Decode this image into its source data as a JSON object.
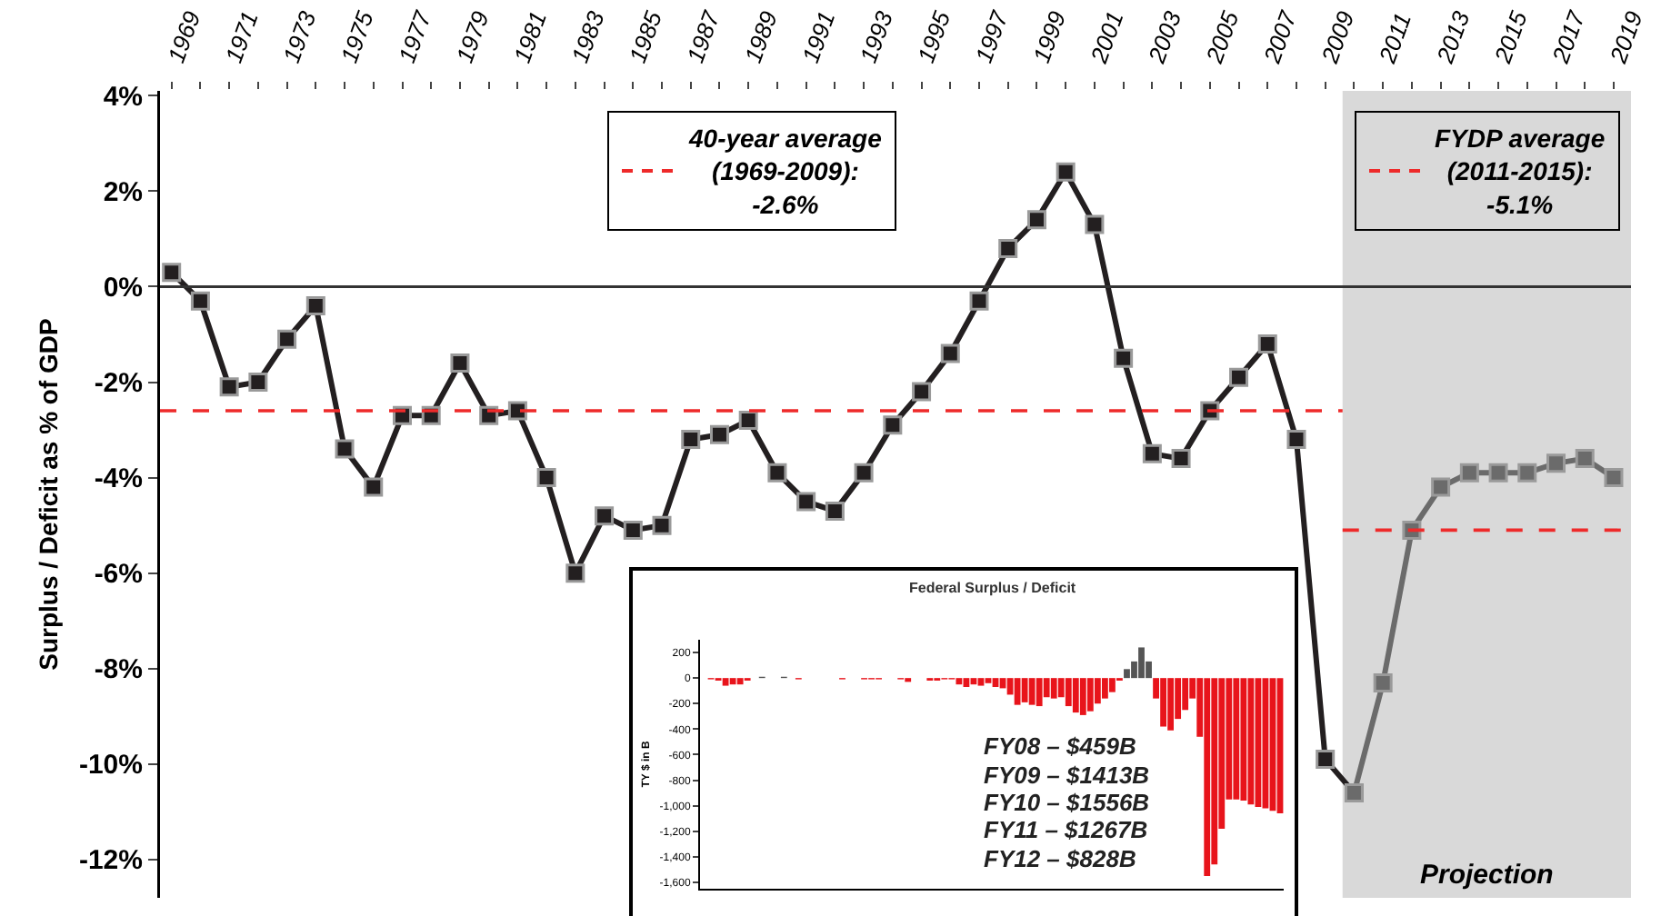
{
  "chart_data": [
    {
      "type": "line",
      "ylabel": "Surplus / Deficit as % of GDP",
      "marker": "square",
      "line_style": "solid",
      "grid": false,
      "legend": "top",
      "xlim": [
        1968.6,
        2019.6
      ],
      "ylim": [
        -12.8,
        4.1
      ],
      "xticks": [
        1969,
        {
          "value": 1970,
          "label": null
        },
        1971,
        {
          "value": 1972,
          "label": null
        },
        1973,
        {
          "value": 1974,
          "label": null
        },
        1975,
        {
          "value": 1976,
          "label": null
        },
        1977,
        {
          "value": 1978,
          "label": null
        },
        1979,
        {
          "value": 1980,
          "label": null
        },
        1981,
        {
          "value": 1982,
          "label": null
        },
        1983,
        {
          "value": 1984,
          "label": null
        },
        1985,
        {
          "value": 1986,
          "label": null
        },
        1987,
        {
          "value": 1988,
          "label": null
        },
        1989,
        {
          "value": 1990,
          "label": null
        },
        1991,
        {
          "value": 1992,
          "label": null
        },
        1993,
        {
          "value": 1994,
          "label": null
        },
        1995,
        {
          "value": 1996,
          "label": null
        },
        1997,
        {
          "value": 1998,
          "label": null
        },
        1999,
        {
          "value": 2000,
          "label": null
        },
        2001,
        {
          "value": 2002,
          "label": null
        },
        2003,
        {
          "value": 2004,
          "label": null
        },
        2005,
        {
          "value": 2006,
          "label": null
        },
        2007,
        {
          "value": 2008,
          "label": null
        },
        2009,
        {
          "value": 2010,
          "label": null
        },
        2011,
        {
          "value": 2012,
          "label": null
        },
        2013,
        {
          "value": 2014,
          "label": null
        },
        2015,
        {
          "value": 2016,
          "label": null
        },
        2017,
        {
          "value": 2018,
          "label": null
        },
        2019
      ],
      "yticks": [
        {
          "value": 4,
          "label": "4%"
        },
        {
          "value": 2,
          "label": "2%"
        },
        {
          "value": 0,
          "label": "0%"
        },
        {
          "value": -2,
          "label": "-2%"
        },
        {
          "value": -4,
          "label": "-4%"
        },
        {
          "value": -6,
          "label": "-6%"
        },
        {
          "value": -8,
          "label": "-8%"
        },
        {
          "value": -10,
          "label": "-10%"
        },
        {
          "value": -12,
          "label": "-12%"
        }
      ],
      "series": [
        {
          "color": "#231f20",
          "x": [
            1969,
            1970,
            1971,
            1972,
            1973,
            1974,
            1975,
            1976,
            1977,
            1978,
            1979,
            1980,
            1981,
            1982,
            1983,
            1984,
            1985,
            1986,
            1987,
            1988,
            1989,
            1990,
            1991,
            1992,
            1993,
            1994,
            1995,
            1996,
            1997,
            1998,
            1999,
            2000,
            2001,
            2002,
            2003,
            2004,
            2005,
            2006,
            2007,
            2008,
            2009,
            2010
          ],
          "values": [
            0.3,
            -0.3,
            -2.1,
            -2.0,
            -1.1,
            -0.4,
            -3.4,
            -4.2,
            -2.7,
            -2.7,
            -1.6,
            -2.7,
            -2.6,
            -4.0,
            -6.0,
            -4.8,
            -5.1,
            -5.0,
            -3.2,
            -3.1,
            -2.8,
            -3.9,
            -4.5,
            -4.7,
            -3.9,
            -2.9,
            -2.2,
            -1.4,
            -0.3,
            0.8,
            1.4,
            2.4,
            1.3,
            -1.5,
            -3.5,
            -3.6,
            -2.6,
            -1.9,
            -1.2,
            -3.2,
            -9.9,
            -10.6
          ]
        },
        {
          "color": "#6b6b6b",
          "x": [
            2010,
            2011,
            2012,
            2013,
            2014,
            2015,
            2016,
            2017,
            2018,
            2019
          ],
          "values": [
            -10.6,
            -8.3,
            -5.1,
            -4.2,
            -3.9,
            -3.9,
            -3.9,
            -3.7,
            -3.6,
            -4.0
          ]
        }
      ],
      "bands": [
        {
          "axis": "x",
          "from": 2009.6,
          "to": 2019.6,
          "label": "Projection",
          "color": "#d9d9d9"
        }
      ],
      "ref_lines": [
        {
          "axis": "y",
          "value": -2.6,
          "label": "40-year average\n(1969-2009):\n-2.6%",
          "color": "#ee2a2a",
          "line_style": "dashed"
        },
        {
          "axis": "y",
          "value": -5.1,
          "label": "FYDP average\n(2011-2015):\n-5.1%",
          "color": "#ee2a2a",
          "line_style": "dashed"
        },
        {
          "axis": "y",
          "value": 0,
          "color": "#333333",
          "line_style": "solid"
        }
      ]
    },
    {
      "type": "bar",
      "title": "Federal Surplus / Deficit",
      "ylabel": "TY $ in B",
      "tick_labels": "y",
      "grid": false,
      "ylim": [
        -1650,
        300
      ],
      "yticks": [
        200,
        0,
        {
          "value": -200,
          "label": "-200"
        },
        {
          "value": -400,
          "label": "-400"
        },
        {
          "value": -600,
          "label": "-600"
        },
        {
          "value": -800,
          "label": "-800"
        },
        {
          "value": -1000,
          "label": "-1,000"
        },
        {
          "value": -1200,
          "label": "-1,200"
        },
        {
          "value": -1400,
          "label": "-1,400"
        },
        {
          "value": -1600,
          "label": "-1,600"
        }
      ],
      "categories": [
        null,
        null,
        null,
        null,
        null,
        null,
        null,
        null,
        null,
        null,
        null,
        null,
        null,
        null,
        null,
        null,
        null,
        null,
        null,
        null,
        null,
        null,
        null,
        null,
        null,
        null,
        null,
        null,
        null,
        null,
        null,
        null,
        null,
        null,
        null,
        null,
        null,
        null,
        null,
        null,
        null,
        null,
        null,
        null,
        null,
        null,
        null,
        null,
        null,
        null,
        null,
        null,
        null,
        null,
        null,
        null,
        null,
        null,
        null,
        null,
        null,
        null,
        null,
        null,
        null,
        null,
        null,
        null,
        null,
        null,
        null,
        null,
        null,
        null,
        null,
        null,
        null,
        null,
        null,
        null
      ],
      "values": [
        0,
        -10,
        -20,
        -60,
        -50,
        -50,
        -20,
        0,
        10,
        0,
        0,
        10,
        0,
        -10,
        0,
        0,
        0,
        0,
        0,
        -10,
        0,
        0,
        -10,
        -10,
        -10,
        0,
        0,
        -10,
        -30,
        0,
        0,
        -20,
        -20,
        -10,
        -10,
        -50,
        -70,
        -50,
        -60,
        -40,
        -70,
        -80,
        -130,
        -210,
        -190,
        -210,
        -220,
        -150,
        -160,
        -150,
        -220,
        -270,
        -290,
        -260,
        -200,
        -160,
        -110,
        -20,
        70,
        130,
        240,
        130,
        -160,
        -380,
        -410,
        -320,
        -250,
        -160,
        -460,
        -1550,
        -1460,
        -1180,
        -950,
        -950,
        -960,
        -990,
        -1010,
        -1020,
        -1040,
        -1060
      ],
      "colors": [
        "#e8141b",
        "#e8141b",
        "#e8141b",
        "#e8141b",
        "#e8141b",
        "#e8141b",
        "#e8141b",
        "#e8141b",
        "#555555",
        "#e8141b",
        "#e8141b",
        "#555555",
        "#e8141b",
        "#e8141b",
        "#e8141b",
        "#e8141b",
        "#e8141b",
        "#e8141b",
        "#e8141b",
        "#e8141b",
        "#e8141b",
        "#e8141b",
        "#e8141b",
        "#e8141b",
        "#e8141b",
        "#e8141b",
        "#e8141b",
        "#e8141b",
        "#e8141b",
        "#e8141b",
        "#e8141b",
        "#e8141b",
        "#e8141b",
        "#e8141b",
        "#e8141b",
        "#e8141b",
        "#e8141b",
        "#e8141b",
        "#e8141b",
        "#e8141b",
        "#e8141b",
        "#e8141b",
        "#e8141b",
        "#e8141b",
        "#e8141b",
        "#e8141b",
        "#e8141b",
        "#e8141b",
        "#e8141b",
        "#e8141b",
        "#e8141b",
        "#e8141b",
        "#e8141b",
        "#e8141b",
        "#e8141b",
        "#e8141b",
        "#e8141b",
        "#e8141b",
        "#555555",
        "#555555",
        "#555555",
        "#555555",
        "#e8141b",
        "#e8141b",
        "#e8141b",
        "#e8141b",
        "#e8141b",
        "#e8141b",
        "#e8141b",
        "#e8141b",
        "#e8141b",
        "#e8141b",
        "#e8141b",
        "#e8141b",
        "#e8141b",
        "#e8141b",
        "#e8141b",
        "#e8141b",
        "#e8141b",
        "#e8141b"
      ],
      "annotations": [
        "FY08 – $459B",
        "FY09 – $1413B",
        "FY10 – $1556B",
        "FY11 – $1267B",
        "FY12 – $828B"
      ]
    }
  ]
}
